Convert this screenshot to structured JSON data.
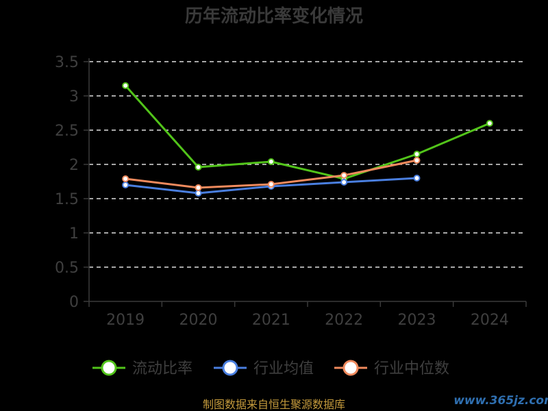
{
  "chart_data": {
    "type": "line",
    "title": "历年流动比率变化情况",
    "categories": [
      "2019",
      "2020",
      "2021",
      "2022",
      "2023",
      "2024"
    ],
    "ylim": [
      0,
      3.5
    ],
    "yticks": [
      "0",
      "0.5",
      "1",
      "1.5",
      "2",
      "2.5",
      "3",
      "3.5"
    ],
    "grid": true,
    "legend_position": "bottom",
    "series": [
      {
        "name": "流动比率",
        "color": "#52c41a",
        "values": [
          3.15,
          1.96,
          2.04,
          1.79,
          2.15,
          2.6
        ]
      },
      {
        "name": "行业均值",
        "color": "#4a7fe0",
        "values": [
          1.7,
          1.58,
          1.68,
          1.74,
          1.8,
          null
        ]
      },
      {
        "name": "行业中位数",
        "color": "#f08a5d",
        "values": [
          1.79,
          1.66,
          1.71,
          1.84,
          2.06,
          null
        ]
      }
    ]
  },
  "footer": {
    "source": "制图数据来自恒生聚源数据库",
    "watermark": "www.365jz.com"
  }
}
